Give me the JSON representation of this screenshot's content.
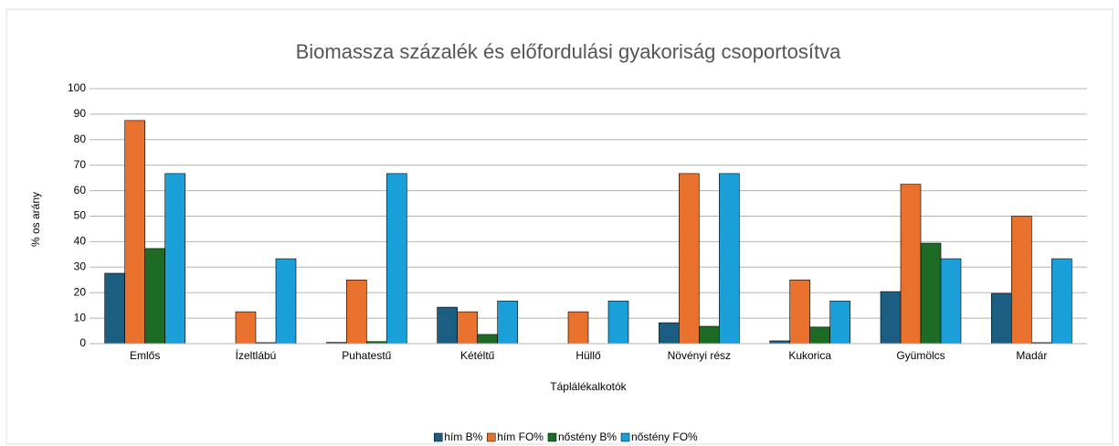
{
  "chart_data": {
    "type": "bar",
    "title": "Biomassza százalék és előfordulási gyakoriság csoportosítva",
    "x_label": "Táplálékalkotók",
    "y_label": "% os arány",
    "categories": [
      "Emlős",
      "Ízeltlábú",
      "Puhatestű",
      "Kétéltű",
      "Hüllő",
      "Növényi rész",
      "Kukorica",
      "Gyümölcs",
      "Madár"
    ],
    "series": [
      {
        "name": "hím B%",
        "color": "#1b5e82",
        "values": [
          27.6,
          0,
          0.5,
          14.3,
          0,
          8.2,
          1.1,
          20.4,
          19.7
        ]
      },
      {
        "name": "hím FO%",
        "color": "#e8712e",
        "values": [
          87.5,
          12.5,
          25,
          12.5,
          12.5,
          66.7,
          25,
          62.5,
          50
        ]
      },
      {
        "name": "nőstény B%",
        "color": "#1e6b26",
        "values": [
          37.3,
          0.4,
          0.8,
          3.6,
          0,
          6.8,
          6.5,
          39.4,
          0.4
        ]
      },
      {
        "name": "nőstény FO%",
        "color": "#1a9fd8",
        "values": [
          66.7,
          33.3,
          66.7,
          16.7,
          16.7,
          66.7,
          16.7,
          33.3,
          33.3
        ]
      }
    ],
    "ylim": [
      0,
      100
    ],
    "yticks": [
      0,
      10,
      20,
      30,
      40,
      50,
      60,
      70,
      80,
      90,
      100
    ],
    "grid": true,
    "legend": "bottom"
  }
}
